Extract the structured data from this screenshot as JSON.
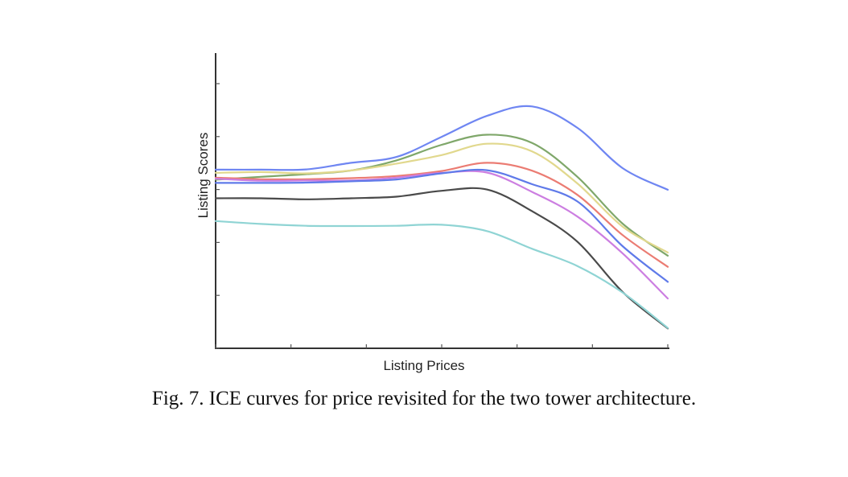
{
  "figure": {
    "caption": "Fig. 7.  ICE curves for price revisited for the two tower architecture."
  },
  "chart_data": {
    "type": "line",
    "title": "",
    "xlabel": "Listing  Prices",
    "ylabel": "Listing  Scores",
    "xlim": [
      0,
      100
    ],
    "ylim": [
      0,
      100
    ],
    "x_tick_count": 7,
    "y_tick_count": 6,
    "grid": false,
    "legend": "none",
    "x": [
      0,
      10,
      20,
      30,
      40,
      50,
      60,
      70,
      80,
      90,
      100
    ],
    "series": [
      {
        "color": "#6f86f2",
        "values": [
          67.5,
          67.5,
          67.6,
          70.1,
          72.3,
          79.9,
          87.8,
          91.4,
          83.3,
          68.1,
          59.9
        ]
      },
      {
        "color": "#7fa76a",
        "values": [
          63.7,
          64.8,
          65.8,
          67.2,
          71.0,
          76.9,
          80.7,
          77.6,
          64.8,
          47.1,
          35.0
        ]
      },
      {
        "color": "#e1d88d",
        "values": [
          66.3,
          66.6,
          66.1,
          67.2,
          69.8,
          73.0,
          77.3,
          74.4,
          62.3,
          46.0,
          36.2
        ]
      },
      {
        "color": "#eb7c73",
        "values": [
          64.5,
          63.9,
          63.9,
          64.3,
          65.1,
          67.0,
          70.1,
          67.1,
          58.0,
          42.8,
          30.8
        ]
      },
      {
        "color": "#cc7ee1",
        "values": [
          64.1,
          63.3,
          63.4,
          63.4,
          64.5,
          66.3,
          66.4,
          59.1,
          49.8,
          35.9,
          18.8
        ]
      },
      {
        "color": "#5f7ae9",
        "values": [
          62.5,
          62.5,
          62.6,
          63.1,
          63.8,
          66.1,
          67.3,
          62.0,
          55.5,
          38.6,
          25.1
        ]
      },
      {
        "color": "#4a4a4a",
        "values": [
          56.7,
          56.7,
          56.3,
          56.7,
          57.3,
          59.5,
          60.0,
          51.8,
          40.3,
          21.3,
          7.5
        ]
      },
      {
        "color": "#8fd4d4",
        "values": [
          48.1,
          47.0,
          46.3,
          46.2,
          46.3,
          46.7,
          44.3,
          37.6,
          31.1,
          21.1,
          7.7
        ]
      }
    ]
  }
}
